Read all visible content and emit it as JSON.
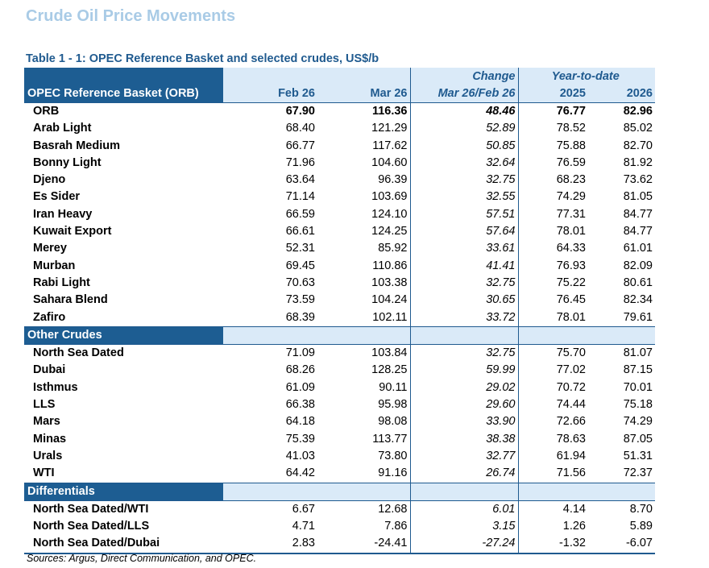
{
  "page_title": "Crude Oil Price Movements",
  "table_caption": "Table 1 - 1: OPEC Reference Basket and selected crudes, US$/b",
  "header": {
    "change_top": "Change",
    "ytd_top": "Year-to-date",
    "columns": [
      "OPEC Reference Basket (ORB)",
      "Feb 26",
      "Mar 26",
      "Mar 26/Feb 26",
      "2025",
      "2026"
    ]
  },
  "opec_rows": [
    [
      "ORB",
      "67.90",
      "116.36",
      "48.46",
      "76.77",
      "82.96"
    ],
    [
      "Arab Light",
      "68.40",
      "121.29",
      "52.89",
      "78.52",
      "85.02"
    ],
    [
      "Basrah Medium",
      "66.77",
      "117.62",
      "50.85",
      "75.88",
      "82.70"
    ],
    [
      "Bonny Light",
      "71.96",
      "104.60",
      "32.64",
      "76.59",
      "81.92"
    ],
    [
      "Djeno",
      "63.64",
      "96.39",
      "32.75",
      "68.23",
      "73.62"
    ],
    [
      "Es Sider",
      "71.14",
      "103.69",
      "32.55",
      "74.29",
      "81.05"
    ],
    [
      "Iran Heavy",
      "66.59",
      "124.10",
      "57.51",
      "77.31",
      "84.77"
    ],
    [
      "Kuwait Export",
      "66.61",
      "124.25",
      "57.64",
      "78.01",
      "84.77"
    ],
    [
      "Merey",
      "52.31",
      "85.92",
      "33.61",
      "64.33",
      "61.01"
    ],
    [
      "Murban",
      "69.45",
      "110.86",
      "41.41",
      "76.93",
      "82.09"
    ],
    [
      "Rabi Light",
      "70.63",
      "103.38",
      "32.75",
      "75.22",
      "80.61"
    ],
    [
      "Sahara Blend",
      "73.59",
      "104.24",
      "30.65",
      "76.45",
      "82.34"
    ],
    [
      "Zafiro",
      "68.39",
      "102.11",
      "33.72",
      "78.01",
      "79.61"
    ]
  ],
  "other_label": "Other Crudes",
  "other_rows": [
    [
      "North Sea Dated",
      "71.09",
      "103.84",
      "32.75",
      "75.70",
      "81.07"
    ],
    [
      "Dubai",
      "68.26",
      "128.25",
      "59.99",
      "77.02",
      "87.15"
    ],
    [
      "Isthmus",
      "61.09",
      "90.11",
      "29.02",
      "70.72",
      "70.01"
    ],
    [
      "LLS",
      "66.38",
      "95.98",
      "29.60",
      "74.44",
      "75.18"
    ],
    [
      "Mars",
      "64.18",
      "98.08",
      "33.90",
      "72.66",
      "74.29"
    ],
    [
      "Minas",
      "75.39",
      "113.77",
      "38.38",
      "78.63",
      "87.05"
    ],
    [
      "Urals",
      "41.03",
      "73.80",
      "32.77",
      "61.94",
      "51.31"
    ],
    [
      "WTI",
      "64.42",
      "91.16",
      "26.74",
      "71.56",
      "72.37"
    ]
  ],
  "diff_label": "Differentials",
  "diff_rows": [
    [
      "North Sea Dated/WTI",
      "6.67",
      "12.68",
      "6.01",
      "4.14",
      "8.70"
    ],
    [
      "North Sea Dated/LLS",
      "4.71",
      "7.86",
      "3.15",
      "1.26",
      "5.89"
    ],
    [
      "North Sea Dated/Dubai",
      "2.83",
      "-24.41",
      "-27.24",
      "-1.32",
      "-6.07"
    ]
  ],
  "sources": "Sources:  Argus, Direct Communication, and OPEC.",
  "colors": {
    "title": "#a9cbe6",
    "accent": "#1f5a8f",
    "section_fill": "#1d5d92",
    "header_fill": "#daeaf8"
  }
}
